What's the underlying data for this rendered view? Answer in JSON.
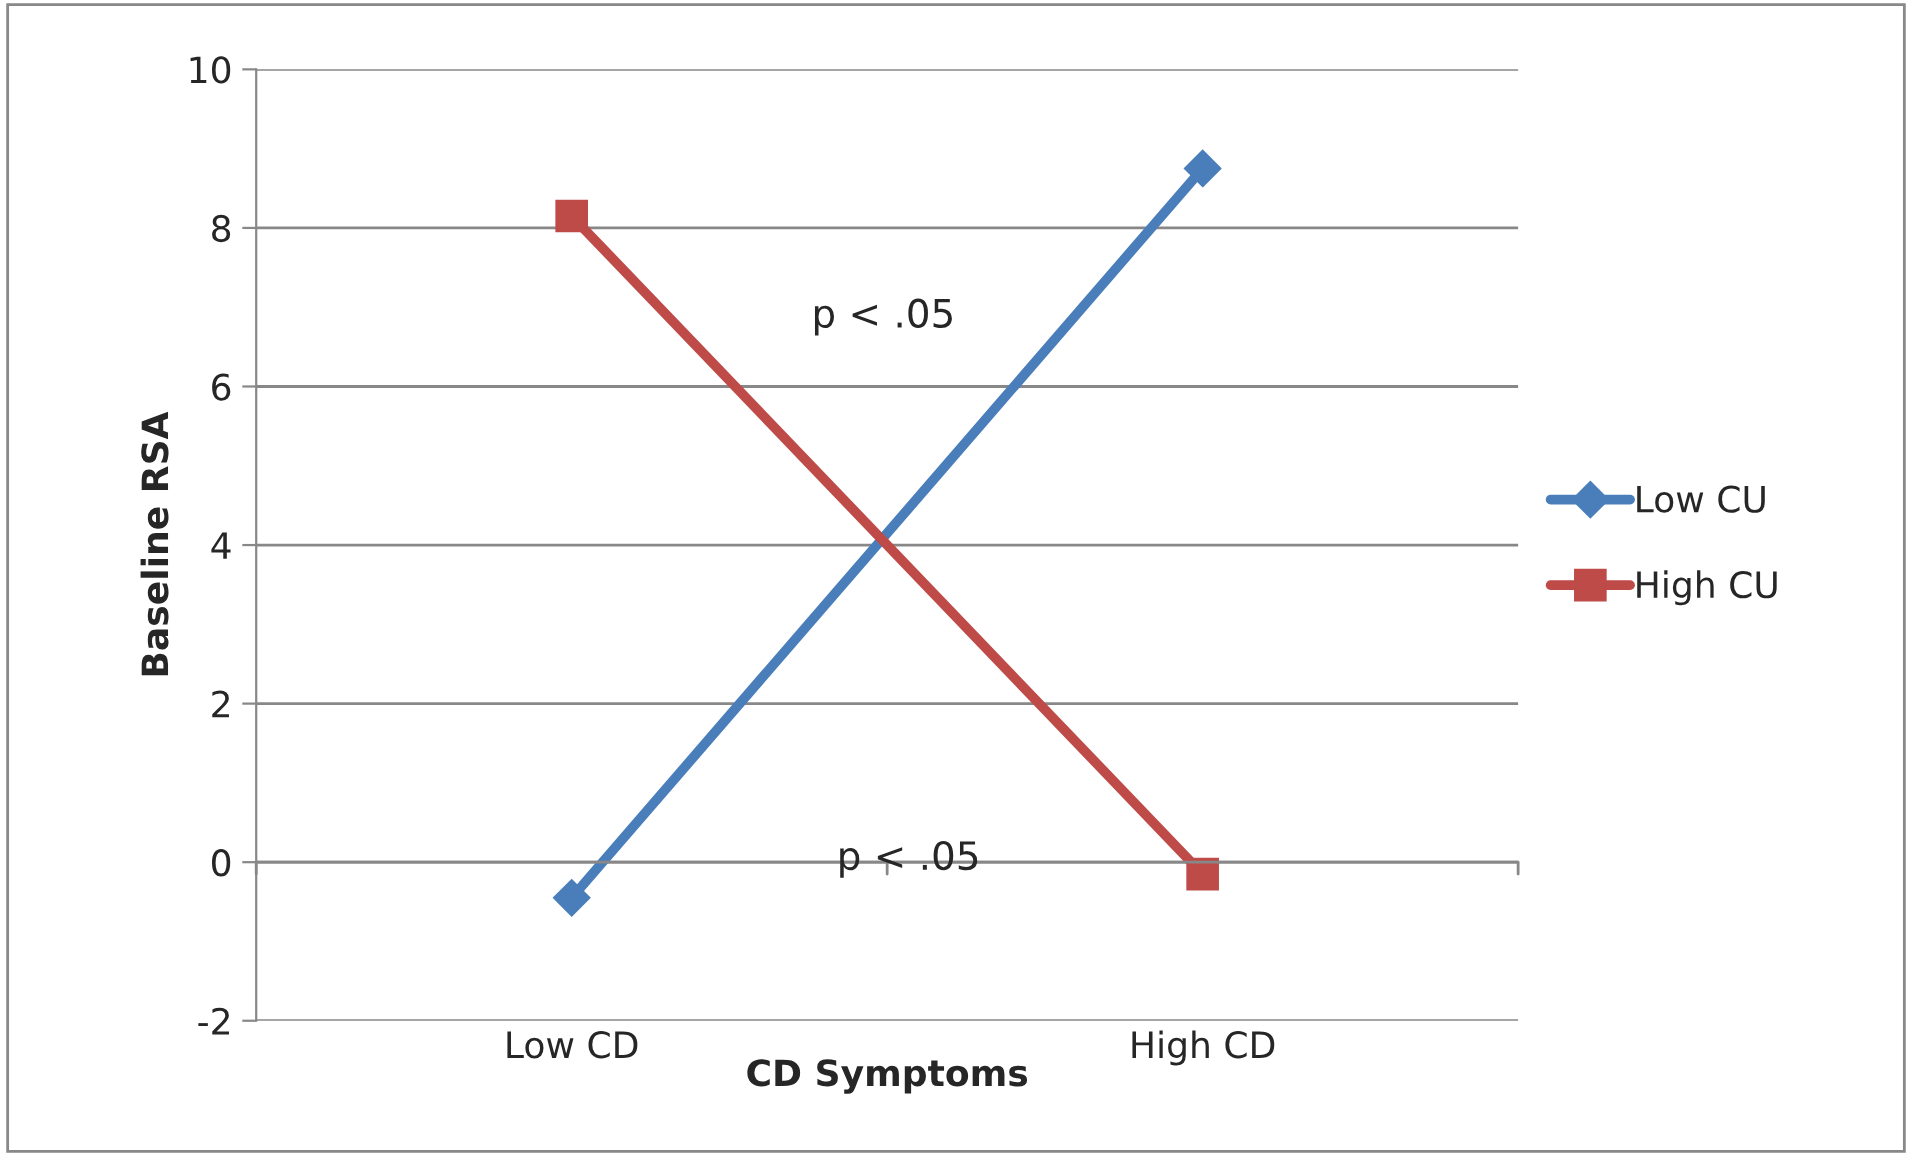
{
  "chart_data": {
    "type": "line",
    "xlabel": "CD Symptoms",
    "ylabel": "Baseline RSA",
    "categories": [
      "Low CD",
      "High CD"
    ],
    "series": [
      {
        "name": "Low CU",
        "color": "#4a7ebb",
        "values": [
          -0.45,
          8.75
        ],
        "marker": "diamond"
      },
      {
        "name": "High CU",
        "color": "#be4b48",
        "values": [
          8.15,
          -0.15
        ],
        "marker": "square"
      }
    ],
    "ylim": [
      -2,
      10
    ],
    "yticks": [
      -2,
      0,
      2,
      4,
      6,
      8,
      10
    ],
    "grid": "y",
    "legend": "right",
    "line_style": "solid",
    "annotations": [
      "p < .05",
      "p < .05"
    ]
  }
}
